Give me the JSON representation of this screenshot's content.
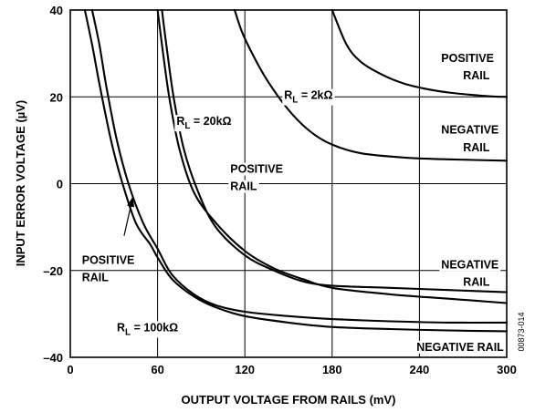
{
  "chart_data": {
    "type": "line",
    "xlabel": "OUTPUT VOLTAGE FROM RAILS (mV)",
    "ylabel": "INPUT ERROR VOLTAGE (µV)",
    "xlim": [
      0,
      300
    ],
    "ylim": [
      -40,
      40
    ],
    "xticks": [
      "0",
      "60",
      "120",
      "180",
      "240",
      "300"
    ],
    "yticks": [
      "40",
      "20",
      "0",
      "–20",
      "–40"
    ],
    "grid": true,
    "figure_id": "00873-014",
    "series": [
      {
        "x": [
          180,
          190,
          200,
          215,
          230,
          245,
          260,
          275,
          290,
          300
        ],
        "y": [
          40,
          32,
          28,
          25,
          23,
          21.8,
          21,
          20.5,
          20.1,
          20
        ]
      },
      {
        "x": [
          113,
          118,
          125,
          135,
          150,
          165,
          180,
          200,
          230,
          260,
          300
        ],
        "y": [
          40,
          35,
          30,
          24,
          17,
          12,
          9,
          7,
          6,
          5.6,
          5.3
        ]
      },
      {
        "x": [
          60,
          63,
          68,
          75,
          85,
          100,
          120,
          140,
          160,
          180,
          220,
          260,
          300
        ],
        "y": [
          40,
          32,
          20,
          8,
          -2,
          -9,
          -15.5,
          -19.5,
          -22,
          -24,
          -25.5,
          -26.5,
          -27.5
        ]
      },
      {
        "x": [
          63,
          66,
          71,
          78,
          88,
          100,
          120,
          140,
          160,
          180,
          220,
          260,
          300
        ],
        "y": [
          40,
          32,
          20,
          8,
          -2,
          -10,
          -16.5,
          -20,
          -22.5,
          -23.5,
          -24,
          -24.5,
          -25
        ]
      },
      {
        "x": [
          10,
          15,
          20,
          28,
          35,
          45,
          55,
          60,
          70,
          85,
          100,
          120,
          150,
          180,
          220,
          260,
          300
        ],
        "y": [
          40,
          32,
          23,
          10,
          1,
          -9,
          -14,
          -17,
          -22,
          -26,
          -28.5,
          -30.5,
          -32,
          -33,
          -33.5,
          -33.8,
          -34
        ]
      },
      {
        "x": [
          15,
          20,
          25,
          32,
          40,
          50,
          60,
          70,
          85,
          100,
          120,
          150,
          180,
          220,
          260,
          300
        ],
        "y": [
          40,
          32,
          22,
          10,
          0,
          -9,
          -15,
          -21,
          -25.5,
          -28,
          -29.5,
          -30.5,
          -31.2,
          -31.7,
          -32,
          -32
        ]
      }
    ],
    "annotations": [
      {
        "text": "POSITIVE",
        "x": 255,
        "y": 28
      },
      {
        "text": "RAIL",
        "x": 270,
        "y": 24
      },
      {
        "text": "NEGATIVE",
        "x": 255,
        "y": 11.5
      },
      {
        "text": "RAIL",
        "x": 270,
        "y": 7.5
      },
      {
        "text": "POSITIVE",
        "x": 110,
        "y": 2.5
      },
      {
        "text": "RAIL",
        "x": 110,
        "y": -1.5
      },
      {
        "text": "POSITIVE",
        "x": 8,
        "y": -18.5
      },
      {
        "text": "RAIL",
        "x": 8,
        "y": -22.5
      },
      {
        "text": "NEGATIVE",
        "x": 255,
        "y": -19.5
      },
      {
        "text": "RAIL",
        "x": 270,
        "y": -23.5
      },
      {
        "text": "NEGATIVE RAIL",
        "x": 238,
        "y": -38.5
      }
    ],
    "rl_labels": [
      {
        "text": "= 2kΩ",
        "x": 147,
        "y": 19.5
      },
      {
        "text": "= 20kΩ",
        "x": 73,
        "y": 13.5
      },
      {
        "text": "= 100kΩ",
        "x": 32,
        "y": -34
      }
    ],
    "rl_prefix": "R",
    "rl_subscript": "L",
    "arrow": {
      "from": [
        37,
        -12
      ],
      "to": [
        43,
        -3
      ]
    }
  }
}
